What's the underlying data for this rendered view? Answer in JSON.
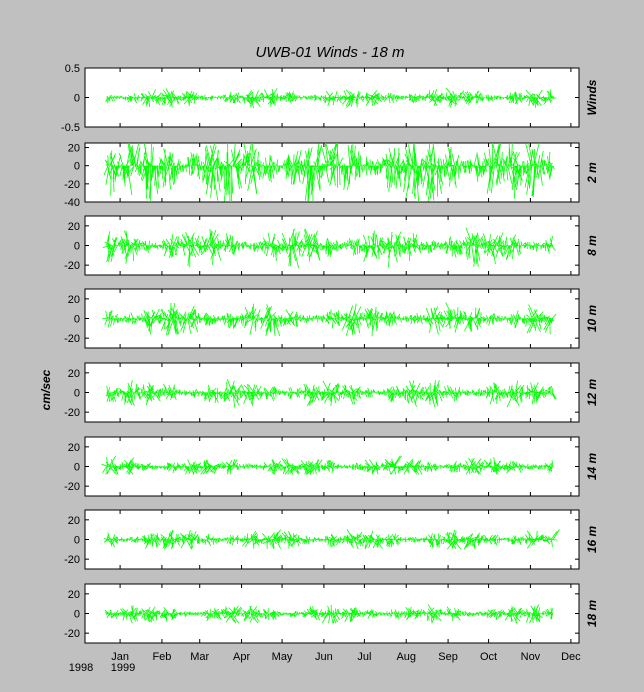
{
  "chart_data": {
    "type": "line",
    "title": "UWB-01   Winds - 18 m",
    "ylabel": "cm/sec",
    "x_start_year": "1998",
    "x_end_year": "1999",
    "x_ticks": [
      "Jan",
      "Feb",
      "Mar",
      "Apr",
      "May",
      "Jun",
      "Jul",
      "Aug",
      "Sep",
      "Oct",
      "Nov",
      "Dec"
    ],
    "x_tick_days": [
      0,
      31,
      59,
      90,
      120,
      151,
      181,
      212,
      243,
      273,
      304,
      334
    ],
    "xlim": [
      -26,
      340
    ],
    "record_days": [
      -10,
      321
    ],
    "series_color": "#00ff00",
    "panels": [
      {
        "label": "Winds",
        "ylim": [
          -0.5,
          0.5
        ],
        "yticks": [
          "0.5",
          "0",
          "-0.5"
        ],
        "ytick_values": [
          0.5,
          0,
          -0.5
        ],
        "amp": 0.06,
        "lo": -0.5,
        "hi": 0.45
      },
      {
        "label": "2 m",
        "ylim": [
          -40,
          25
        ],
        "yticks": [
          "20",
          "0",
          "-20",
          "-40"
        ],
        "ytick_values": [
          20,
          0,
          -20,
          -40
        ],
        "amp": 14,
        "lo": -45,
        "hi": 25
      },
      {
        "label": "8 m",
        "ylim": [
          -30,
          30
        ],
        "yticks": [
          "20",
          "0",
          "-20"
        ],
        "ytick_values": [
          20,
          0,
          -20
        ],
        "amp": 7,
        "lo": -32,
        "hi": 25
      },
      {
        "label": "10 m",
        "ylim": [
          -30,
          30
        ],
        "yticks": [
          "20",
          "0",
          "-20"
        ],
        "ytick_values": [
          20,
          0,
          -20
        ],
        "amp": 6,
        "lo": -25,
        "hi": 20
      },
      {
        "label": "12 m",
        "ylim": [
          -30,
          30
        ],
        "yticks": [
          "20",
          "0",
          "-20"
        ],
        "ytick_values": [
          20,
          0,
          -20
        ],
        "amp": 5,
        "lo": -15,
        "hi": 20
      },
      {
        "label": "14 m",
        "ylim": [
          -30,
          30
        ],
        "yticks": [
          "20",
          "0",
          "-20"
        ],
        "ytick_values": [
          20,
          0,
          -20
        ],
        "amp": 4,
        "lo": -8,
        "hi": 18
      },
      {
        "label": "16 m",
        "ylim": [
          -30,
          30
        ],
        "yticks": [
          "20",
          "0",
          "-20"
        ],
        "ytick_values": [
          20,
          0,
          -20
        ],
        "amp": 4,
        "lo": -10,
        "hi": 20
      },
      {
        "label": "18 m",
        "ylim": [
          -30,
          30
        ],
        "yticks": [
          "20",
          "0",
          "-20"
        ],
        "ytick_values": [
          20,
          0,
          -20
        ],
        "amp": 3.5,
        "lo": -10,
        "hi": 18
      }
    ],
    "grid": false,
    "legend": "none"
  }
}
